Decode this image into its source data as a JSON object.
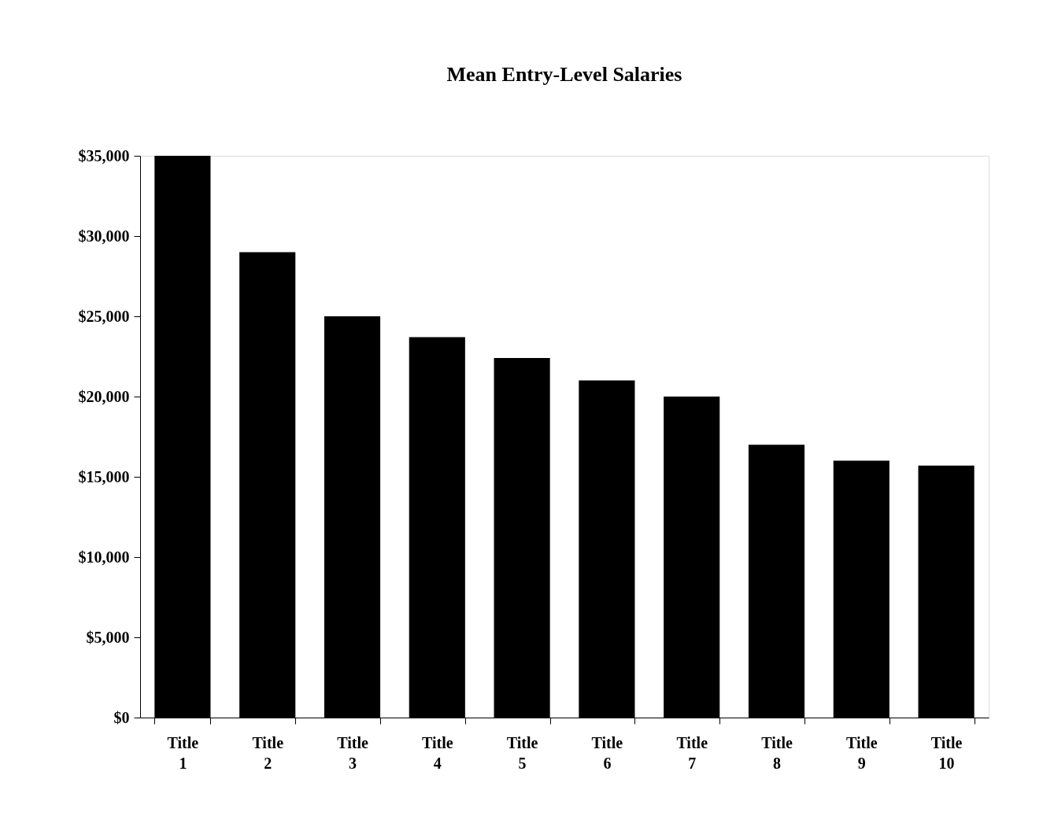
{
  "chart_data": {
    "type": "bar",
    "title": "Mean Entry-Level Salaries",
    "categories": [
      "Title 1",
      "Title 2",
      "Title 3",
      "Title 4",
      "Title 5",
      "Title 6",
      "Title 7",
      "Title 8",
      "Title 9",
      "Title 10"
    ],
    "values": [
      35000,
      29000,
      25000,
      23700,
      22400,
      21000,
      20000,
      17000,
      16000,
      15700
    ],
    "color": "#000000",
    "ylim": [
      0,
      35000
    ],
    "yticks": [
      {
        "value": 0,
        "label": "$0"
      },
      {
        "value": 5000,
        "label": "$5,000"
      },
      {
        "value": 10000,
        "label": "$10,000"
      },
      {
        "value": 15000,
        "label": "$15,000"
      },
      {
        "value": 20000,
        "label": "$20,000"
      },
      {
        "value": 25000,
        "label": "$25,000"
      },
      {
        "value": 30000,
        "label": "$30,000"
      },
      {
        "value": 35000,
        "label": "$35,000"
      }
    ],
    "grid": false
  }
}
